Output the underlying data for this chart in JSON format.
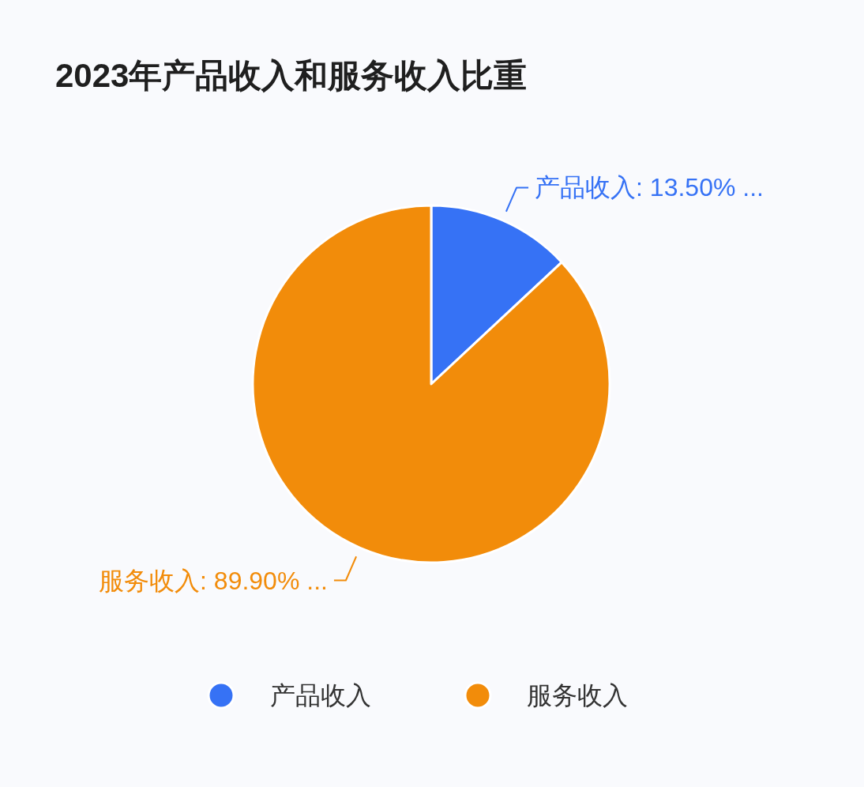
{
  "chart_data": {
    "type": "pie",
    "title": "2023年产品收入和服务收入比重",
    "categories": [
      "产品收入",
      "服务收入"
    ],
    "values": [
      13.5,
      89.9
    ],
    "colors": [
      "#3672f5",
      "#f28c0a"
    ],
    "value_labels": [
      "产品收入: 13.50% ...",
      "服务收入: 89.90% ..."
    ],
    "legend": "bottom"
  }
}
